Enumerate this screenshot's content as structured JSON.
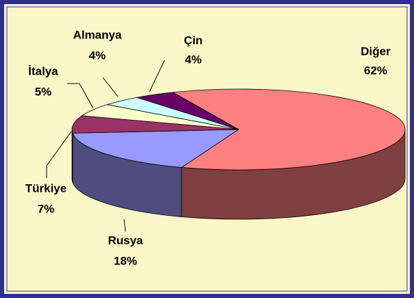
{
  "chart_data": {
    "type": "pie3d",
    "categories": [
      "Diğer",
      "Rusya",
      "Türkiye",
      "İtalya",
      "Almanya",
      "Çin"
    ],
    "values": [
      62,
      18,
      7,
      5,
      4,
      4
    ],
    "value_labels": [
      "62%",
      "18%",
      "7%",
      "5%",
      "4%",
      "4%"
    ],
    "colors": [
      "#FF8080",
      "#9999FF",
      "#993366",
      "#FFFFCC",
      "#CCFFFF",
      "#660066"
    ]
  }
}
